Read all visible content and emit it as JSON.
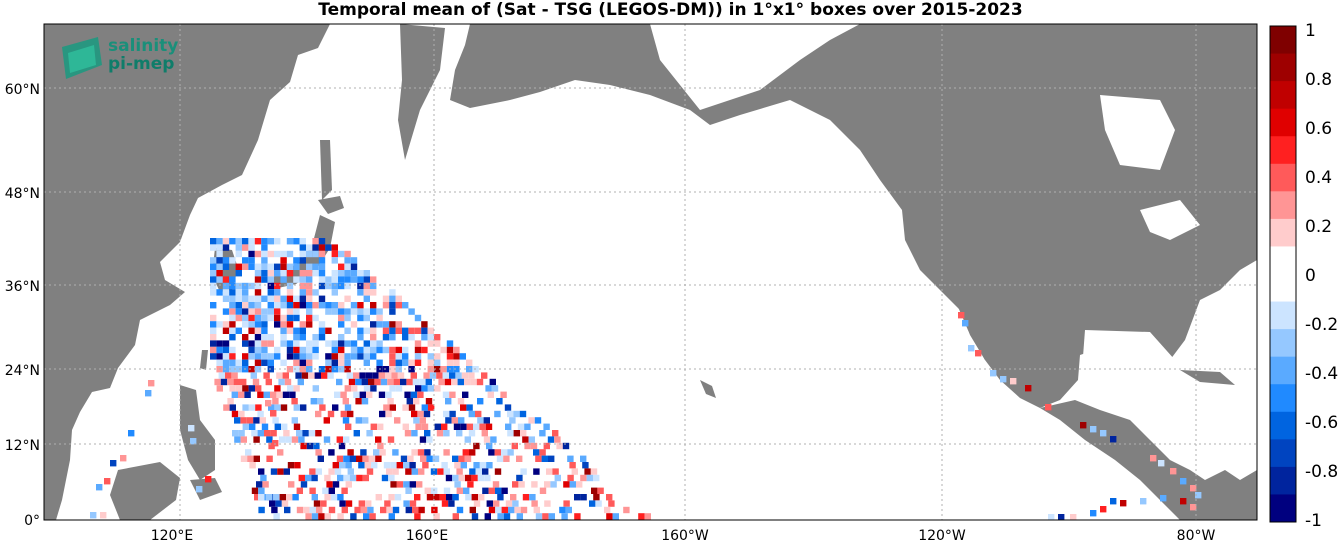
{
  "title": "Temporal mean of (Sat - TSG (LEGOS-DM)) in 1°x1° boxes over 2015-2023",
  "logo": {
    "line1": "salinity",
    "line2": "pi-mep"
  },
  "map": {
    "lat_range": [
      0,
      68
    ],
    "lon_range": [
      100,
      290
    ],
    "lat_ticks": [
      "0°",
      "12°N",
      "24°N",
      "36°N",
      "48°N",
      "60°N"
    ],
    "lon_ticks": [
      "120°E",
      "160°E",
      "160°W",
      "120°W",
      "80°W"
    ],
    "land_color": "#808080",
    "ocean_color": "#ffffff",
    "grid": "dotted"
  },
  "colorbar": {
    "range": [
      -1,
      1
    ],
    "tick_labels": [
      "1",
      "0.8",
      "0.6",
      "0.4",
      "0.2",
      "0",
      "-0.2",
      "-0.4",
      "-0.6",
      "-0.8",
      "-1"
    ],
    "colors": [
      "#7f0000",
      "#9e0000",
      "#c00000",
      "#e00000",
      "#ff2020",
      "#ff5a5a",
      "#ff9595",
      "#ffcccc",
      "#ffffff",
      "#ffffff",
      "#cce4ff",
      "#95c8ff",
      "#5aaaff",
      "#208aff",
      "#0064e0",
      "#0044c0",
      "#00249e",
      "#00007f"
    ]
  }
}
